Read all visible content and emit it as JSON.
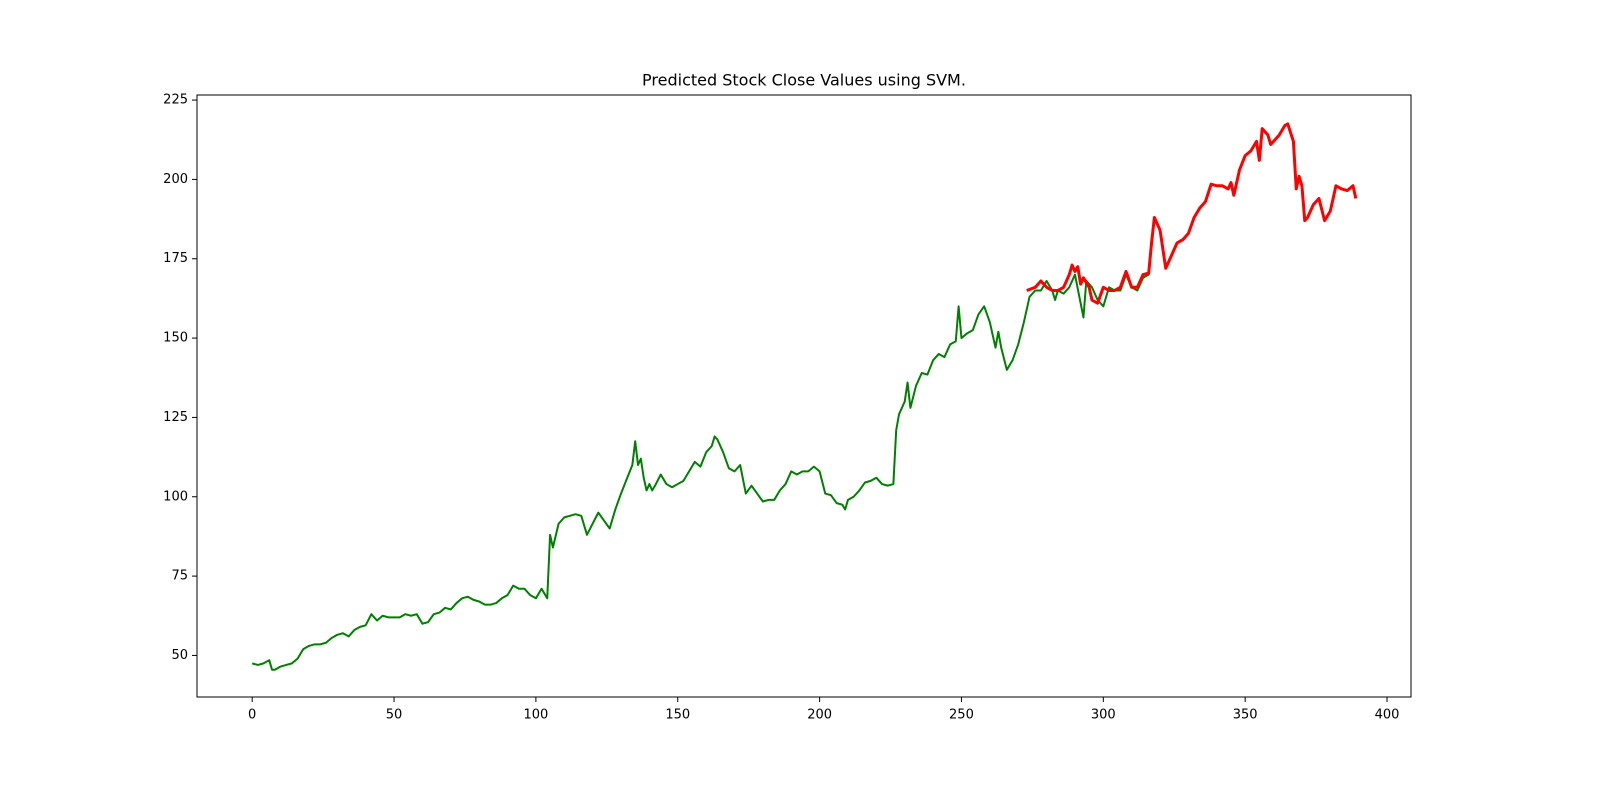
{
  "chart_data": {
    "type": "line",
    "title": "Predicted Stock Close Values using SVM.",
    "xlim": [
      -19.45,
      408.45
    ],
    "ylim": [
      36.9,
      226.6
    ],
    "xticks": [
      0,
      50,
      100,
      150,
      200,
      250,
      300,
      350,
      400
    ],
    "yticks": [
      50,
      75,
      100,
      125,
      150,
      175,
      200,
      225
    ],
    "series": [
      {
        "color": "#008000",
        "x": [
          0,
          2,
          4,
          6,
          7,
          8,
          10,
          12,
          14,
          16,
          18,
          20,
          22,
          24,
          26,
          28,
          30,
          32,
          34,
          36,
          38,
          40,
          42,
          44,
          46,
          48,
          50,
          52,
          54,
          56,
          58,
          60,
          62,
          64,
          66,
          68,
          70,
          72,
          74,
          76,
          78,
          80,
          82,
          84,
          86,
          88,
          90,
          92,
          94,
          96,
          98,
          100,
          102,
          104,
          105,
          106,
          108,
          110,
          112,
          114,
          116,
          118,
          120,
          122,
          124,
          126,
          128,
          130,
          132,
          134,
          135,
          136,
          137,
          138,
          139,
          140,
          141,
          142,
          144,
          146,
          148,
          150,
          152,
          154,
          156,
          158,
          160,
          162,
          163,
          164,
          166,
          168,
          170,
          172,
          174,
          176,
          178,
          180,
          182,
          184,
          186,
          188,
          190,
          192,
          194,
          196,
          198,
          200,
          202,
          204,
          206,
          208,
          209,
          210,
          212,
          214,
          216,
          218,
          220,
          222,
          224,
          226,
          227,
          228,
          230,
          231,
          232,
          234,
          236,
          238,
          240,
          242,
          244,
          246,
          248,
          249,
          250,
          252,
          254,
          256,
          258,
          260,
          262,
          263,
          264,
          266,
          268,
          270,
          272,
          274,
          276,
          278,
          280,
          282,
          283,
          284,
          286,
          288,
          290,
          292,
          293,
          294,
          296,
          298,
          300,
          302,
          304,
          306,
          308,
          310,
          312,
          314,
          316,
          317,
          318,
          320,
          322,
          324,
          326,
          328,
          330,
          332,
          334,
          336,
          338,
          340,
          342,
          344,
          345,
          346,
          348,
          350,
          352,
          354,
          355,
          356,
          358,
          359,
          360,
          362,
          364,
          365,
          367,
          368,
          369,
          370,
          371,
          372,
          374,
          376,
          378,
          380,
          382,
          384,
          386,
          388,
          389
        ],
        "values": [
          47.5,
          47,
          47.5,
          48.5,
          45.5,
          45.5,
          46.5,
          47,
          47.5,
          49,
          52,
          53,
          53.5,
          53.5,
          54,
          55.5,
          56.5,
          57,
          56,
          58,
          59,
          59.5,
          63,
          61,
          62.5,
          62,
          62,
          62,
          63,
          62.5,
          63,
          60,
          60.5,
          63,
          63.5,
          65,
          64.5,
          66.5,
          68,
          68.5,
          67.5,
          67,
          66,
          66,
          66.5,
          68,
          69,
          72,
          71,
          71,
          69,
          68,
          71,
          68,
          88,
          84,
          91.5,
          93.5,
          94,
          94.5,
          94,
          88,
          91.5,
          95,
          92.5,
          90,
          96,
          101,
          105.5,
          110,
          117.5,
          110,
          112,
          106,
          102,
          104,
          102,
          103.5,
          107,
          104,
          103,
          104,
          105,
          108,
          111,
          109.5,
          114,
          116,
          119,
          118,
          114,
          109,
          108,
          110,
          101,
          103.5,
          101,
          98.5,
          99,
          99,
          102,
          104,
          108,
          107,
          108,
          108,
          109.5,
          108,
          101,
          100.5,
          98,
          97.5,
          96,
          99,
          100,
          102,
          104.5,
          105,
          106,
          104,
          103.5,
          104,
          121,
          126,
          130,
          136,
          128,
          135,
          139,
          138.5,
          143,
          145,
          144,
          148,
          149,
          160,
          150,
          151.5,
          152.5,
          157.5,
          160,
          155,
          147,
          152,
          147,
          140,
          143,
          148,
          155,
          163,
          165,
          165,
          168,
          165,
          162,
          165,
          164,
          166,
          170,
          161,
          156.5,
          168,
          166,
          162,
          160,
          166,
          165,
          165,
          170,
          166,
          165,
          169,
          170,
          180,
          188,
          184,
          172,
          176,
          180,
          181,
          183,
          188,
          191,
          193,
          198.5,
          198,
          198,
          197,
          199,
          195,
          203,
          207.5,
          209,
          212,
          206,
          216,
          214,
          211,
          212,
          214,
          217,
          217.5,
          212,
          197,
          201,
          198,
          187,
          188,
          192,
          194,
          187,
          190,
          198,
          197,
          196.5,
          198,
          194
        ]
      },
      {
        "color": "#ff0000",
        "x": [
          273,
          276,
          278,
          280,
          282,
          284,
          286,
          288,
          289,
          290,
          291,
          292,
          293,
          295,
          296,
          298,
          300,
          302,
          304,
          306,
          308,
          310,
          312,
          314,
          316,
          317,
          318,
          320,
          322,
          324,
          326,
          328,
          330,
          332,
          334,
          336,
          338,
          340,
          342,
          344,
          345,
          346,
          348,
          350,
          352,
          354,
          355,
          356,
          358,
          359,
          360,
          362,
          364,
          365,
          367,
          368,
          369,
          370,
          371,
          372,
          374,
          376,
          378,
          380,
          382,
          384,
          386,
          388,
          389
        ],
        "values": [
          165,
          166,
          168,
          166,
          165,
          165,
          166,
          170,
          173,
          171,
          172.5,
          167,
          169,
          166,
          162,
          161,
          166,
          165,
          165,
          166,
          171,
          166,
          166,
          170,
          170.5,
          180,
          188,
          184,
          172,
          176,
          180,
          181,
          183,
          188,
          191,
          193,
          198.5,
          198,
          198,
          197,
          199,
          195,
          203,
          207.5,
          209,
          212,
          206,
          216,
          214,
          211,
          212,
          214,
          217,
          217.5,
          212,
          197,
          201,
          198,
          187,
          188,
          192,
          194,
          187,
          190,
          198,
          197,
          196.5,
          198,
          194
        ]
      }
    ]
  }
}
